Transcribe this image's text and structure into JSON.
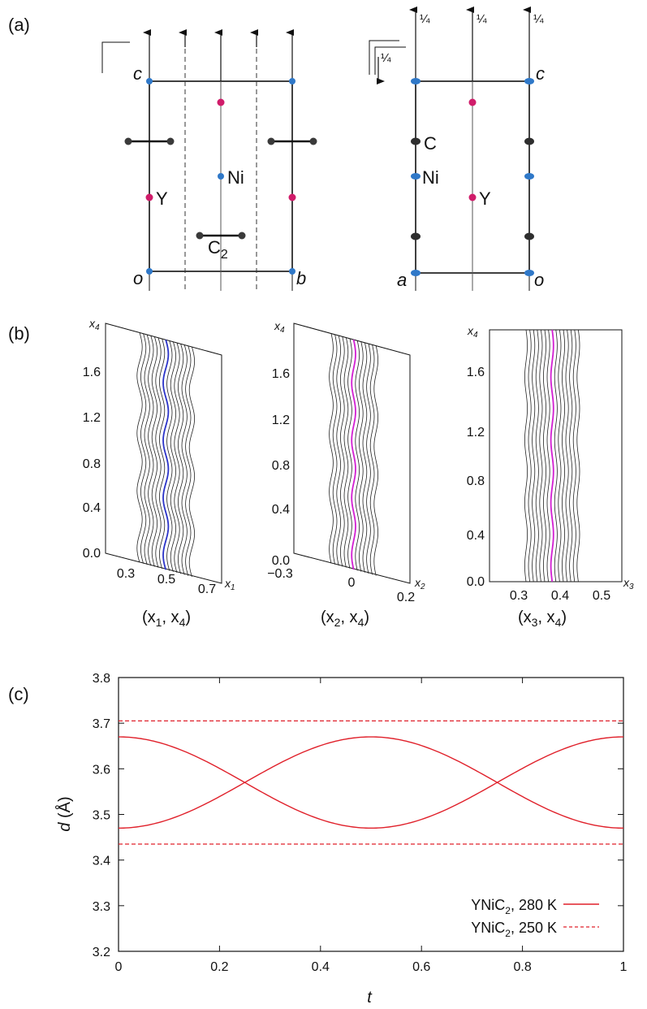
{
  "panel_labels": {
    "a": "(a)",
    "b": "(b)",
    "c": "(c)"
  },
  "panel_a": {
    "left": {
      "corners": {
        "top": "c",
        "bottom_left": "o",
        "bottom_right": "b"
      },
      "atoms": {
        "Y": "Y",
        "Ni": "Ni",
        "C2": "C",
        "C2_sub": "2"
      }
    },
    "right": {
      "corners": {
        "top": "c",
        "bottom_left": "a",
        "bottom_right": "o"
      },
      "atoms": {
        "C": "C",
        "Ni": "Ni",
        "Y": "Y"
      },
      "quarter": "¼"
    }
  },
  "chart_data": [
    {
      "type": "line",
      "title": "(x1, x4)",
      "xlabel": "x1",
      "ylabel": "x4",
      "x_ticks": [
        "0.3",
        "0.5",
        "0.7"
      ],
      "y_ticks": [
        "0.0",
        "0.4",
        "0.8",
        "1.2",
        "1.6"
      ],
      "highlight_color": "#2a32c8",
      "label_parts": {
        "open": "(x",
        "sub1": "1",
        "mid": ", x",
        "sub2": "4",
        "close": ")"
      }
    },
    {
      "type": "line",
      "title": "(x2, x4)",
      "xlabel": "x2",
      "ylabel": "x4",
      "x_ticks": [
        "−0.3",
        "0",
        "0.2"
      ],
      "y_ticks": [
        "0.0",
        "0.4",
        "0.8",
        "1.2",
        "1.6"
      ],
      "highlight_color": "#d21ed2",
      "label_parts": {
        "open": "(x",
        "sub1": "2",
        "mid": ", x",
        "sub2": "4",
        "close": ")"
      }
    },
    {
      "type": "line",
      "title": "(x3, x4)",
      "xlabel": "x3",
      "ylabel": "x4",
      "x_ticks": [
        "0.3",
        "0.4",
        "0.5"
      ],
      "y_ticks": [
        "0.0",
        "0.4",
        "0.8",
        "1.2",
        "1.6"
      ],
      "highlight_color": "#d21ed2",
      "label_parts": {
        "open": "(x",
        "sub1": "3",
        "mid": ", x",
        "sub2": "4",
        "close": ")"
      }
    },
    {
      "type": "line",
      "xlabel": "t",
      "ylabel": "d (Å)",
      "xlim": [
        0,
        1
      ],
      "ylim": [
        3.2,
        3.8
      ],
      "x_ticks": [
        "0",
        "0.2",
        "0.4",
        "0.6",
        "0.8",
        "1"
      ],
      "y_ticks": [
        "3.2",
        "3.3",
        "3.4",
        "3.5",
        "3.6",
        "3.7",
        "3.8"
      ],
      "series": [
        {
          "name": "YNiC2, 280 K",
          "style": "solid",
          "color": "#e0202a",
          "values_t0": 3.67,
          "amplitude": 0.1,
          "mean": 3.57,
          "period": 1.0,
          "curve": "cos",
          "phase": 0
        },
        {
          "name": "YNiC2, 280 K",
          "style": "solid",
          "color": "#e0202a",
          "values_t0": 3.47,
          "amplitude": 0.1,
          "mean": 3.57,
          "period": 1.0,
          "curve": "cos",
          "phase": 0.5
        },
        {
          "name": "YNiC2, 250 K",
          "style": "dashed",
          "color": "#e0202a",
          "y": 3.705
        },
        {
          "name": "YNiC2, 250 K",
          "style": "dashed",
          "color": "#e0202a",
          "y": 3.435
        }
      ],
      "legend": [
        {
          "pre": "YNiC",
          "sub": "2",
          "post": ", 280 K",
          "style": "solid"
        },
        {
          "pre": "YNiC",
          "sub": "2",
          "post": ", 250 K",
          "style": "dashed"
        }
      ]
    }
  ]
}
